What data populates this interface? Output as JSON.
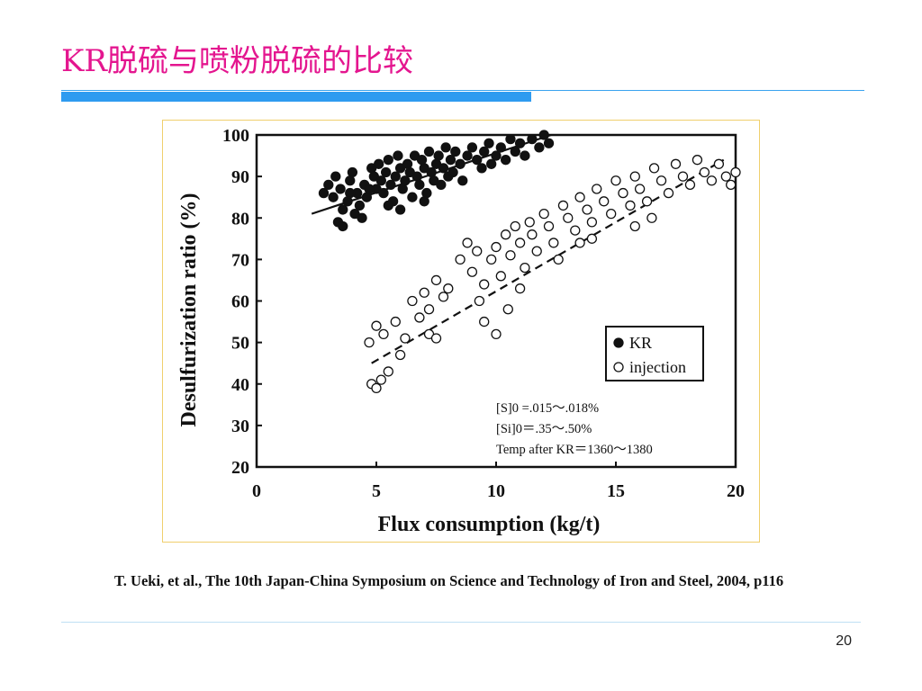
{
  "slide": {
    "title": "KR脱硫与喷粉脱硫的比较",
    "citation": "T. Ueki, et al., The 10th Japan-China Symposium on Science and Technology of Iron and Steel, 2004, p116",
    "page_number": "20",
    "colors": {
      "title": "#e4168f",
      "accent_bar": "#2e9bf0",
      "frame_border": "#f0cf6d"
    }
  },
  "chart_data": {
    "type": "scatter",
    "title": "",
    "xlabel": "Flux consumption (kg/t)",
    "ylabel": "Desulfurization ratio (%)",
    "xlim": [
      0,
      20
    ],
    "ylim": [
      20,
      100
    ],
    "x_ticks": [
      0,
      5,
      10,
      15,
      20
    ],
    "y_ticks": [
      20,
      30,
      40,
      50,
      60,
      70,
      80,
      90,
      100
    ],
    "grid": false,
    "legend_position": "right",
    "series": [
      {
        "name": "KR",
        "marker": "filled-circle",
        "points": [
          [
            2.8,
            86
          ],
          [
            3.0,
            88
          ],
          [
            3.2,
            85
          ],
          [
            3.3,
            90
          ],
          [
            3.5,
            87
          ],
          [
            3.4,
            79
          ],
          [
            3.6,
            82
          ],
          [
            3.8,
            84
          ],
          [
            3.9,
            89
          ],
          [
            4.0,
            91
          ],
          [
            4.2,
            86
          ],
          [
            4.3,
            83
          ],
          [
            4.4,
            80
          ],
          [
            4.5,
            88
          ],
          [
            4.6,
            85
          ],
          [
            4.8,
            92
          ],
          [
            4.9,
            90
          ],
          [
            5.0,
            87
          ],
          [
            5.1,
            93
          ],
          [
            5.2,
            89
          ],
          [
            5.3,
            86
          ],
          [
            5.4,
            91
          ],
          [
            5.5,
            94
          ],
          [
            5.6,
            88
          ],
          [
            5.7,
            84
          ],
          [
            5.8,
            90
          ],
          [
            5.9,
            95
          ],
          [
            6.0,
            92
          ],
          [
            6.1,
            87
          ],
          [
            6.2,
            89
          ],
          [
            6.3,
            93
          ],
          [
            6.4,
            91
          ],
          [
            6.5,
            85
          ],
          [
            6.6,
            95
          ],
          [
            6.7,
            90
          ],
          [
            6.8,
            88
          ],
          [
            6.9,
            94
          ],
          [
            7.0,
            92
          ],
          [
            7.1,
            86
          ],
          [
            7.2,
            96
          ],
          [
            7.3,
            91
          ],
          [
            7.4,
            89
          ],
          [
            7.5,
            93
          ],
          [
            7.6,
            95
          ],
          [
            7.7,
            88
          ],
          [
            7.8,
            92
          ],
          [
            7.9,
            97
          ],
          [
            8.0,
            90
          ],
          [
            8.1,
            94
          ],
          [
            8.2,
            91
          ],
          [
            8.3,
            96
          ],
          [
            8.5,
            93
          ],
          [
            8.6,
            89
          ],
          [
            8.8,
            95
          ],
          [
            9.0,
            97
          ],
          [
            9.2,
            94
          ],
          [
            9.4,
            92
          ],
          [
            9.5,
            96
          ],
          [
            9.7,
            98
          ],
          [
            9.8,
            93
          ],
          [
            10.0,
            95
          ],
          [
            10.2,
            97
          ],
          [
            10.4,
            94
          ],
          [
            10.6,
            99
          ],
          [
            10.8,
            96
          ],
          [
            11.0,
            98
          ],
          [
            11.2,
            95
          ],
          [
            11.5,
            99
          ],
          [
            11.8,
            97
          ],
          [
            12.0,
            100
          ],
          [
            12.2,
            98
          ],
          [
            3.6,
            78
          ],
          [
            4.1,
            81
          ],
          [
            5.5,
            83
          ],
          [
            6.0,
            82
          ],
          [
            7.0,
            84
          ],
          [
            3.9,
            86
          ],
          [
            4.7,
            87
          ]
        ]
      },
      {
        "name": "injection",
        "marker": "open-circle",
        "points": [
          [
            4.8,
            40
          ],
          [
            5.0,
            39
          ],
          [
            5.2,
            41
          ],
          [
            5.5,
            43
          ],
          [
            4.7,
            50
          ],
          [
            5.0,
            54
          ],
          [
            5.3,
            52
          ],
          [
            5.8,
            55
          ],
          [
            6.0,
            47
          ],
          [
            6.2,
            51
          ],
          [
            6.5,
            60
          ],
          [
            6.8,
            56
          ],
          [
            7.0,
            62
          ],
          [
            7.2,
            58
          ],
          [
            7.5,
            65
          ],
          [
            7.8,
            61
          ],
          [
            7.2,
            52
          ],
          [
            7.5,
            51
          ],
          [
            8.0,
            63
          ],
          [
            8.5,
            70
          ],
          [
            8.8,
            74
          ],
          [
            9.0,
            67
          ],
          [
            9.2,
            72
          ],
          [
            9.3,
            60
          ],
          [
            9.5,
            64
          ],
          [
            9.8,
            70
          ],
          [
            10.0,
            73
          ],
          [
            10.2,
            66
          ],
          [
            10.4,
            76
          ],
          [
            10.6,
            71
          ],
          [
            10.8,
            78
          ],
          [
            11.0,
            74
          ],
          [
            11.2,
            68
          ],
          [
            11.4,
            79
          ],
          [
            11.5,
            76
          ],
          [
            11.7,
            72
          ],
          [
            12.0,
            81
          ],
          [
            12.2,
            78
          ],
          [
            12.4,
            74
          ],
          [
            12.6,
            70
          ],
          [
            12.8,
            83
          ],
          [
            13.0,
            80
          ],
          [
            13.3,
            77
          ],
          [
            13.5,
            85
          ],
          [
            13.8,
            82
          ],
          [
            14.0,
            79
          ],
          [
            14.2,
            87
          ],
          [
            14.5,
            84
          ],
          [
            14.8,
            81
          ],
          [
            15.0,
            89
          ],
          [
            15.3,
            86
          ],
          [
            15.6,
            83
          ],
          [
            15.8,
            90
          ],
          [
            16.0,
            87
          ],
          [
            16.3,
            84
          ],
          [
            16.6,
            92
          ],
          [
            16.9,
            89
          ],
          [
            17.2,
            86
          ],
          [
            17.5,
            93
          ],
          [
            17.8,
            90
          ],
          [
            18.1,
            88
          ],
          [
            18.4,
            94
          ],
          [
            18.7,
            91
          ],
          [
            19.0,
            89
          ],
          [
            19.3,
            93
          ],
          [
            19.6,
            90
          ],
          [
            19.8,
            88
          ],
          [
            20.0,
            91
          ],
          [
            9.5,
            55
          ],
          [
            10.0,
            52
          ],
          [
            10.5,
            58
          ],
          [
            11.0,
            63
          ],
          [
            13.5,
            74
          ],
          [
            14.0,
            75
          ],
          [
            15.8,
            78
          ],
          [
            16.5,
            80
          ]
        ]
      }
    ],
    "trend_lines": [
      {
        "series": "KR",
        "style": "solid",
        "from": [
          2.3,
          81
        ],
        "to": [
          12.3,
          100
        ]
      },
      {
        "series": "injection",
        "style": "dashed",
        "from": [
          4.8,
          45
        ],
        "to": [
          19.5,
          94
        ]
      }
    ],
    "annotations": [
      "[S]0 =.015〜.018%",
      "[Si]0＝.35〜.50%",
      "Temp after KR＝1360〜1380"
    ]
  }
}
